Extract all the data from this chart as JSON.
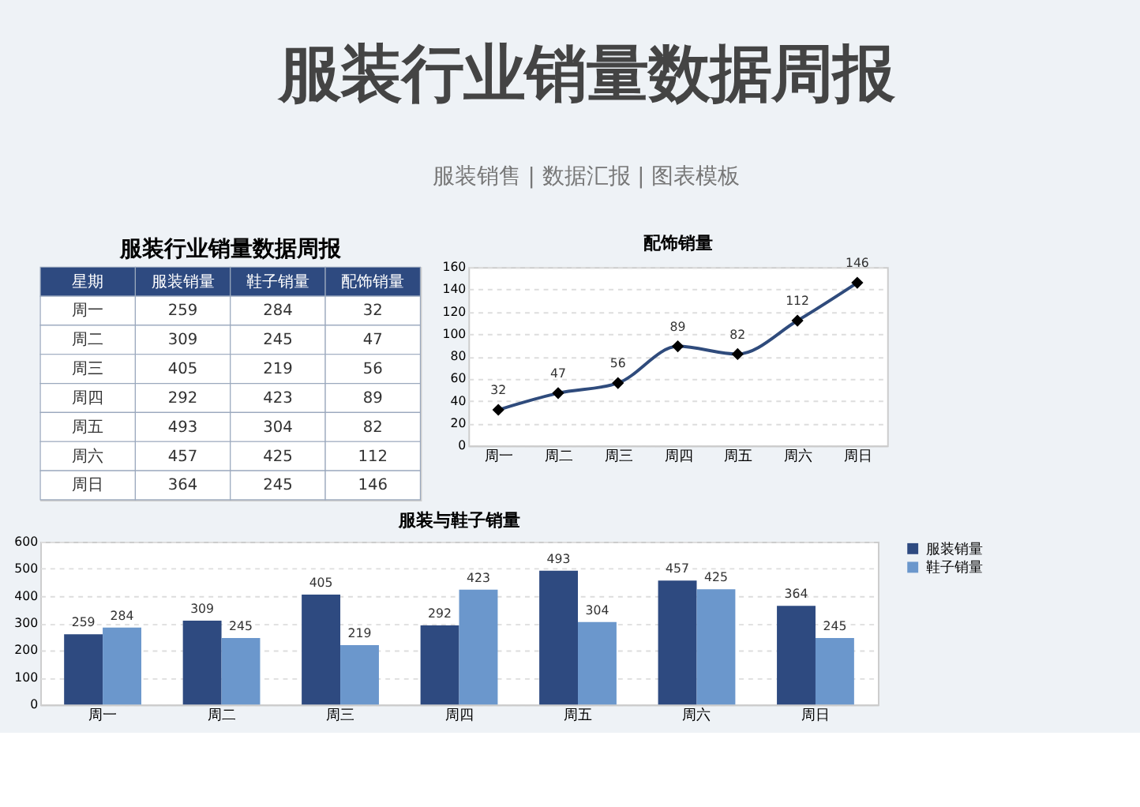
{
  "chart_data": [
    {
      "type": "other",
      "title": "服装行业销量数据周报",
      "subtitle": "服装销售 | 数据汇报 | 图表模板"
    },
    {
      "type": "other",
      "title": "服装行业销量数据周报",
      "xlabel": "星期",
      "data_labels": true,
      "categories": [
        "周一",
        "周二",
        "周三",
        "周四",
        "周五",
        "周六",
        "周日"
      ],
      "series": [
        {
          "name": "服装销量",
          "values": [
            259,
            309,
            405,
            292,
            493,
            457,
            364
          ]
        },
        {
          "name": "鞋子销量",
          "values": [
            284,
            245,
            219,
            423,
            304,
            425,
            245
          ]
        },
        {
          "name": "配饰销量",
          "values": [
            32,
            47,
            56,
            89,
            82,
            112,
            146
          ]
        }
      ]
    },
    {
      "type": "line",
      "title": "配饰销量",
      "categories": [
        "周一",
        "周二",
        "周三",
        "周四",
        "周五",
        "周六",
        "周日"
      ],
      "values": [
        32,
        47,
        56,
        89,
        82,
        112,
        146
      ],
      "color": "#2f4b7c",
      "marker": "diamond",
      "line_style": "solid",
      "ylim": [
        0,
        160
      ],
      "yticks": [
        0,
        20,
        40,
        60,
        80,
        100,
        120,
        140,
        160
      ],
      "grid": "y",
      "data_labels": true
    },
    {
      "type": "bar",
      "title": "服装与鞋子销量",
      "categories": [
        "周一",
        "周二",
        "周三",
        "周四",
        "周五",
        "周六",
        "周日"
      ],
      "series": [
        {
          "name": "服装销量",
          "color": "#2e4a80",
          "values": [
            259,
            309,
            405,
            292,
            493,
            457,
            364
          ]
        },
        {
          "name": "鞋子销量",
          "color": "#6b97cc",
          "values": [
            284,
            245,
            219,
            423,
            304,
            425,
            245
          ]
        }
      ],
      "ylim": [
        0,
        600
      ],
      "yticks": [
        0,
        100,
        200,
        300,
        400,
        500,
        600
      ],
      "grid": "y",
      "legend": "right",
      "data_labels": true
    }
  ]
}
